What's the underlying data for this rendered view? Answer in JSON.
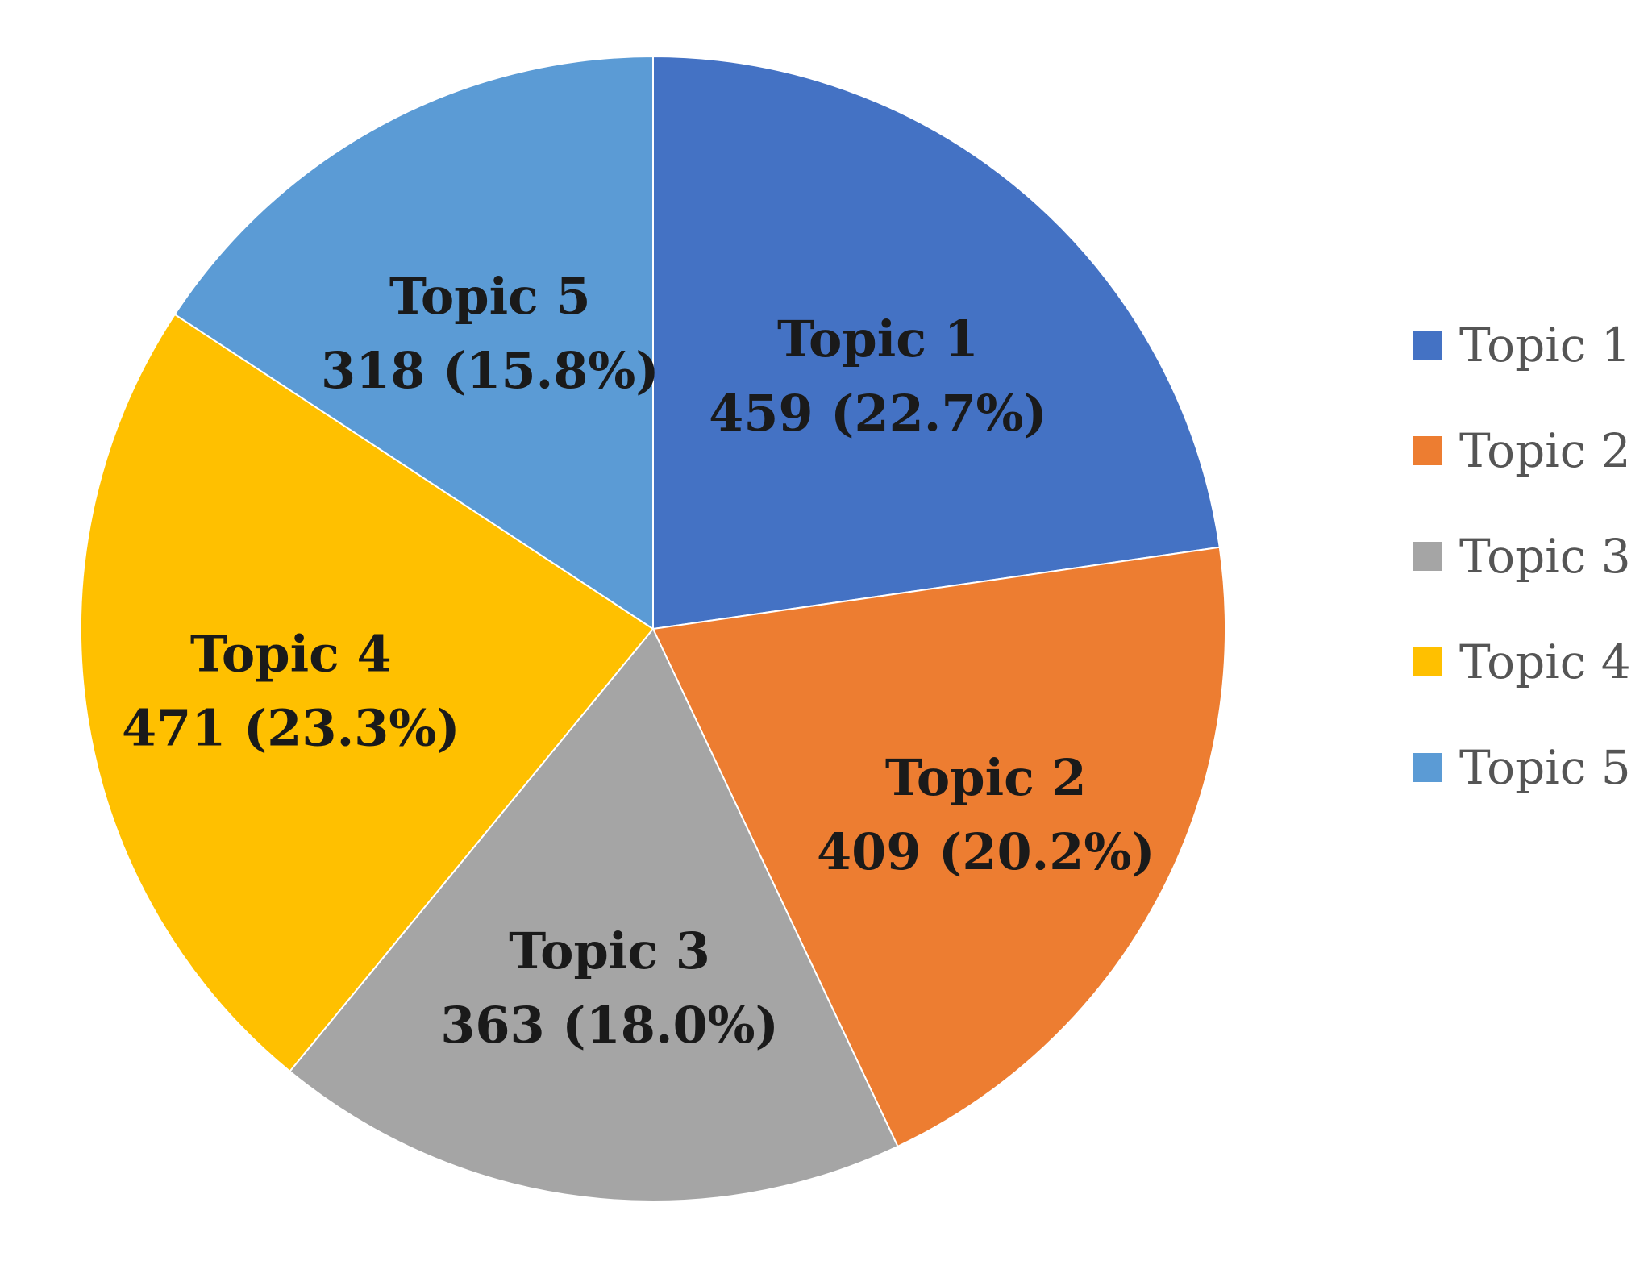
{
  "chart_data": {
    "type": "pie",
    "categories": [
      "Topic 1",
      "Topic 2",
      "Topic 3",
      "Topic 4",
      "Topic 5"
    ],
    "values": [
      459,
      409,
      363,
      471,
      318
    ],
    "percent_labels": [
      "22.7%",
      "20.2%",
      "18.0%",
      "23.3%",
      "15.8%"
    ],
    "value_labels": [
      "459 (22.7%)",
      "409 (20.2%)",
      "363 (18.0%)",
      "471 (23.3%)",
      "318 (15.8%)"
    ],
    "colors": [
      "#4472C4",
      "#ED7D31",
      "#A5A5A5",
      "#FFC000",
      "#5B9BD5"
    ],
    "start_angle_deg": 0,
    "direction": "clockwise",
    "legend": {
      "placement": "right",
      "entries": [
        "Topic 1",
        "Topic 2",
        "Topic 3",
        "Topic 4",
        "Topic 5"
      ]
    },
    "title": ""
  }
}
